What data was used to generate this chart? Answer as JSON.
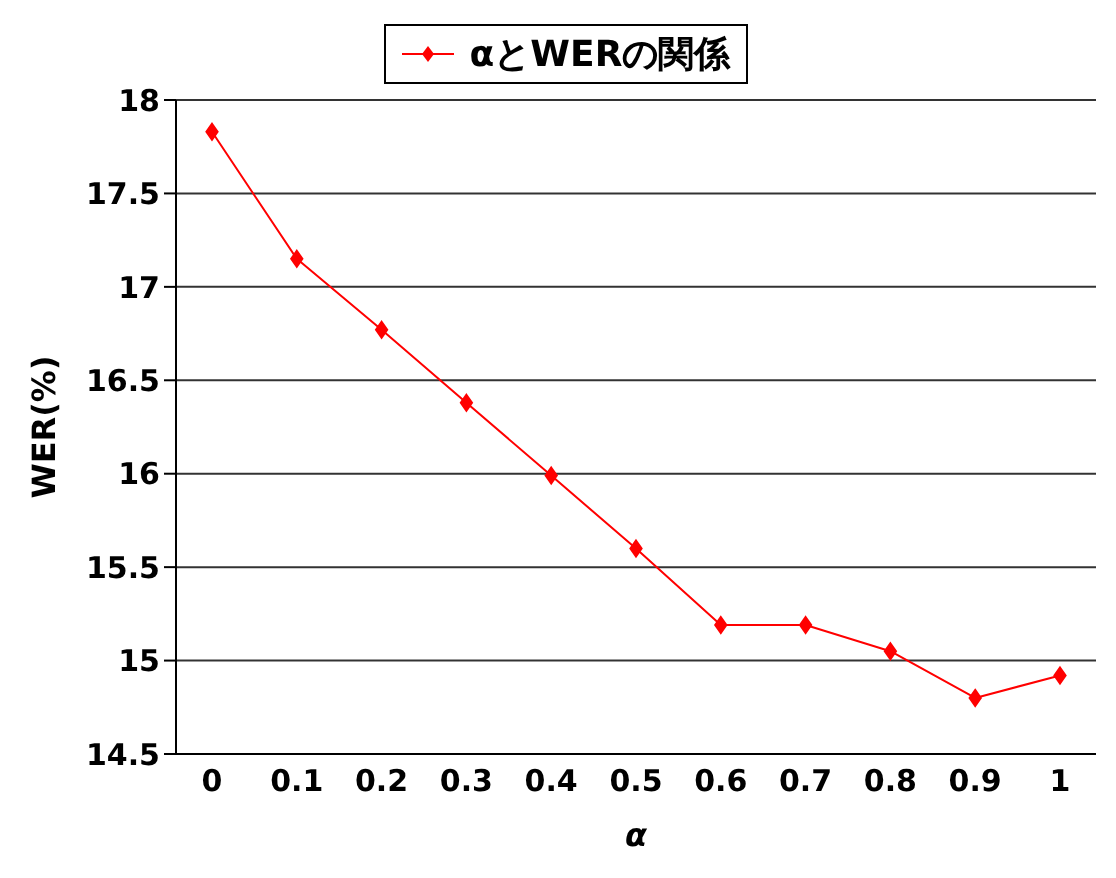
{
  "chart_data": {
    "type": "line",
    "xlabel": "α",
    "ylabel": "WER(%)",
    "categories": [
      "0",
      "0.1",
      "0.2",
      "0.3",
      "0.4",
      "0.5",
      "0.6",
      "0.7",
      "0.8",
      "0.9",
      "1"
    ],
    "series": [
      {
        "name": "αとWERの関係",
        "color": "#ff0000",
        "values": [
          17.83,
          17.15,
          16.77,
          16.38,
          15.99,
          15.6,
          15.19,
          15.19,
          15.05,
          14.8,
          14.92
        ]
      }
    ],
    "ylim": [
      14.5,
      18
    ],
    "yticks": [
      14.5,
      15,
      15.5,
      16,
      16.5,
      17,
      17.5,
      18
    ],
    "grid": "y",
    "legend": "top",
    "marker": "diamond",
    "line_style": "solid"
  }
}
